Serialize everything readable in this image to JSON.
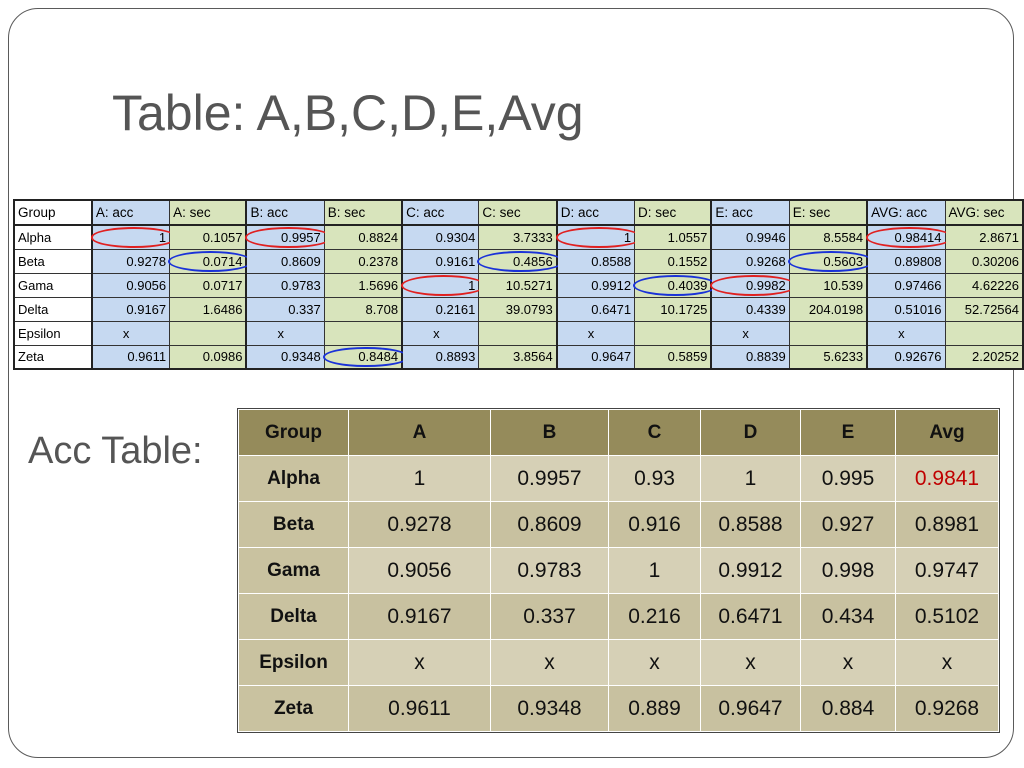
{
  "slide": {
    "title": "Table: A,B,C,D,E,Avg",
    "acc_label": "Acc Table:"
  },
  "sheet": {
    "headers": [
      "Group",
      "A: acc",
      "A: sec",
      "B: acc",
      "B: sec",
      "C: acc",
      "C: sec",
      "D: acc",
      "D: sec",
      "E: acc",
      "E: sec",
      "AVG: acc",
      "AVG: sec"
    ],
    "rows": [
      {
        "group": "Alpha",
        "cells": [
          "1",
          "0.1057",
          "0.9957",
          "0.8824",
          "0.9304",
          "3.7333",
          "1",
          "1.0557",
          "0.9946",
          "8.5584",
          "0.98414",
          "2.8671"
        ]
      },
      {
        "group": "Beta",
        "cells": [
          "0.9278",
          "0.0714",
          "0.8609",
          "0.2378",
          "0.9161",
          "0.4856",
          "0.8588",
          "0.1552",
          "0.9268",
          "0.5603",
          "0.89808",
          "0.30206"
        ]
      },
      {
        "group": "Gama",
        "cells": [
          "0.9056",
          "0.0717",
          "0.9783",
          "1.5696",
          "1",
          "10.5271",
          "0.9912",
          "0.4039",
          "0.9982",
          "10.539",
          "0.97466",
          "4.62226"
        ]
      },
      {
        "group": "Delta",
        "cells": [
          "0.9167",
          "1.6486",
          "0.337",
          "8.708",
          "0.2161",
          "39.0793",
          "0.6471",
          "10.1725",
          "0.4339",
          "204.0198",
          "0.51016",
          "52.72564"
        ]
      },
      {
        "group": "Epsilon",
        "cells": [
          "x",
          "",
          "x",
          "",
          "x",
          "",
          "x",
          "",
          "x",
          "",
          "x",
          ""
        ]
      },
      {
        "group": "Zeta",
        "cells": [
          "0.9611",
          "0.0986",
          "0.9348",
          "0.8484",
          "0.8893",
          "3.8564",
          "0.9647",
          "0.5859",
          "0.8839",
          "5.6233",
          "0.92676",
          "2.20252"
        ]
      }
    ],
    "marks": [
      {
        "row": 0,
        "col": 0,
        "color": "red"
      },
      {
        "row": 0,
        "col": 2,
        "color": "red"
      },
      {
        "row": 0,
        "col": 6,
        "color": "red"
      },
      {
        "row": 0,
        "col": 10,
        "color": "red"
      },
      {
        "row": 1,
        "col": 1,
        "color": "blue"
      },
      {
        "row": 1,
        "col": 5,
        "color": "blue"
      },
      {
        "row": 1,
        "col": 9,
        "color": "blue"
      },
      {
        "row": 2,
        "col": 4,
        "color": "red"
      },
      {
        "row": 2,
        "col": 7,
        "color": "blue"
      },
      {
        "row": 2,
        "col": 8,
        "color": "red"
      },
      {
        "row": 5,
        "col": 3,
        "color": "blue"
      }
    ]
  },
  "acc_table": {
    "headers": [
      "Group",
      "A",
      "B",
      "C",
      "D",
      "E",
      "Avg"
    ],
    "rows": [
      {
        "group": "Alpha",
        "cells": [
          "1",
          "0.9957",
          "0.93",
          "1",
          "0.995",
          "0.9841"
        ]
      },
      {
        "group": "Beta",
        "cells": [
          "0.9278",
          "0.8609",
          "0.916",
          "0.8588",
          "0.927",
          "0.8981"
        ]
      },
      {
        "group": "Gama",
        "cells": [
          "0.9056",
          "0.9783",
          "1",
          "0.9912",
          "0.998",
          "0.9747"
        ]
      },
      {
        "group": "Delta",
        "cells": [
          "0.9167",
          "0.337",
          "0.216",
          "0.6471",
          "0.434",
          "0.5102"
        ]
      },
      {
        "group": "Epsilon",
        "cells": [
          "x",
          "x",
          "x",
          "x",
          "x",
          "x"
        ]
      },
      {
        "group": "Zeta",
        "cells": [
          "0.9611",
          "0.9348",
          "0.889",
          "0.9647",
          "0.884",
          "0.9268"
        ]
      }
    ],
    "highlight": {
      "row": 0,
      "col": 5,
      "color": "#c00000"
    }
  },
  "colors": {
    "acc_header": "#958b5b",
    "acc_cell": "#d6d0b6",
    "sheet_acc_col": "#c6d9f1",
    "sheet_sec_col": "#d8e4bc",
    "mark_red": "#e02020",
    "mark_blue": "#1a32d8"
  }
}
